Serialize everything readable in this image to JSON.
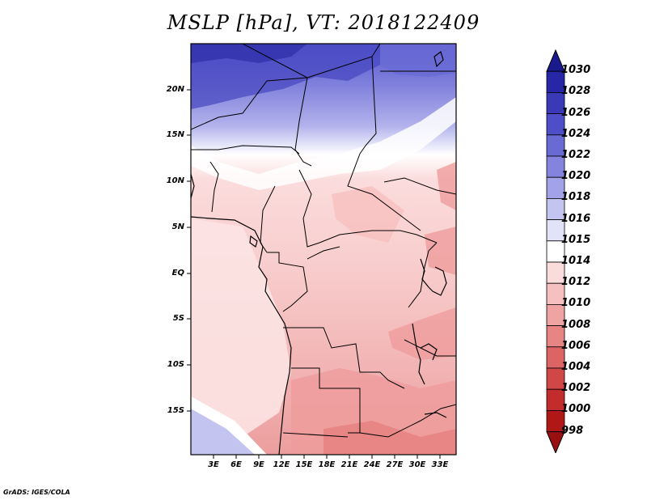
{
  "title": "MSLP [hPa], VT: 2018122409",
  "footer": "GrADS: IGES/COLA",
  "map": {
    "lat_labels": [
      "20N",
      "15N",
      "10N",
      "5N",
      "EQ",
      "5S",
      "10S",
      "15S"
    ],
    "lon_labels": [
      "3E",
      "6E",
      "9E",
      "12E",
      "15E",
      "18E",
      "21E",
      "24E",
      "27E",
      "30E",
      "33E"
    ]
  },
  "colorbar": {
    "labels": [
      "1030",
      "1028",
      "1026",
      "1024",
      "1022",
      "1020",
      "1018",
      "1016",
      "1015",
      "1014",
      "1012",
      "1010",
      "1008",
      "1006",
      "1004",
      "1002",
      "1000",
      "998"
    ],
    "colors": [
      "#1a1a8c",
      "#2626a6",
      "#3a3ab8",
      "#4e4ec8",
      "#6a6ad4",
      "#8484de",
      "#a2a2e8",
      "#c4c4f0",
      "#e2e2f8",
      "#ffffff",
      "#fbdcdc",
      "#f6c0c0",
      "#efa3a3",
      "#e78484",
      "#dd6464",
      "#d14646",
      "#c22c2c",
      "#b01818",
      "#9a1010"
    ]
  }
}
